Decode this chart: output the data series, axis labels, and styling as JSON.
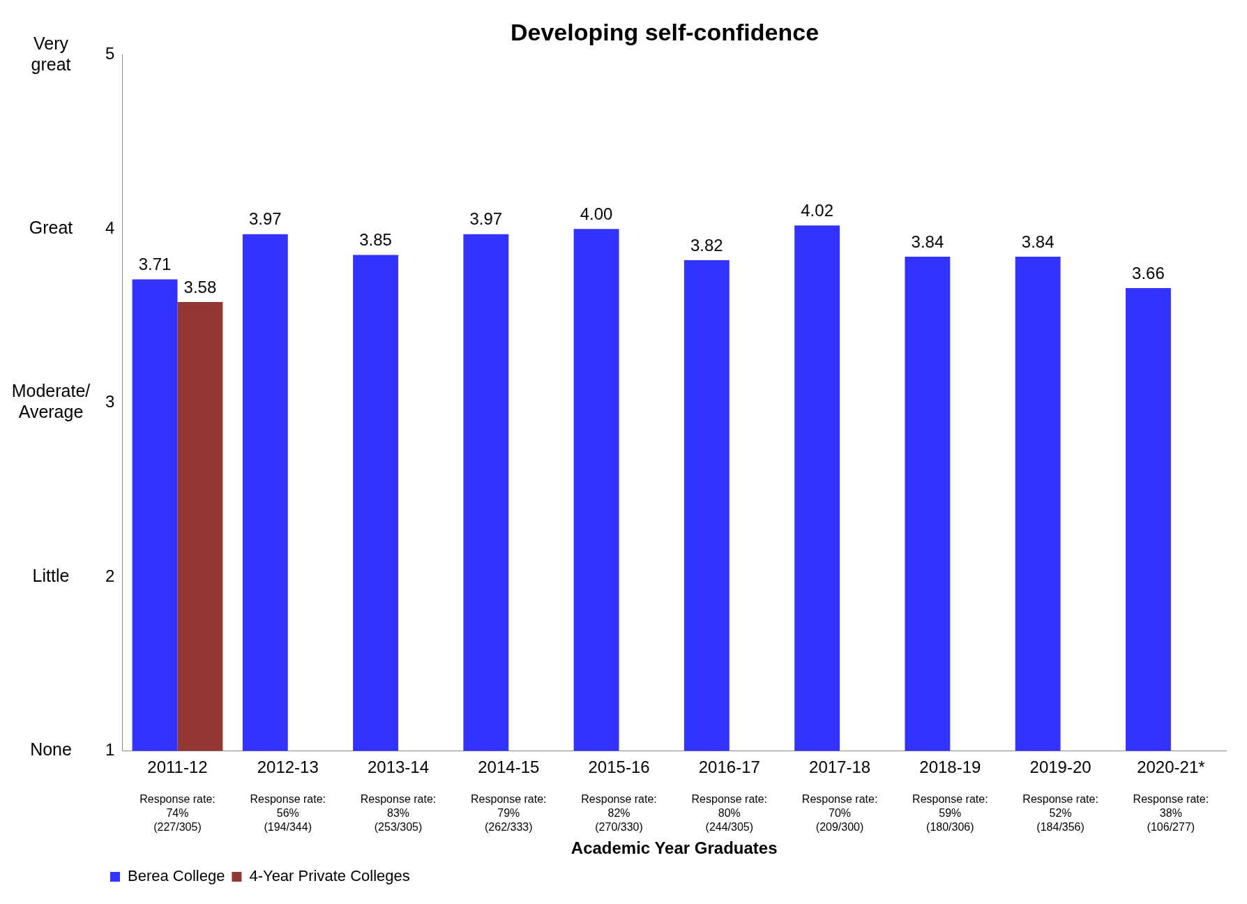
{
  "chart_data": {
    "type": "bar",
    "title": "Developing self-confidence",
    "xlabel": "Academic Year Graduates",
    "categories": [
      "2011-12",
      "2012-13",
      "2013-14",
      "2014-15",
      "2015-16",
      "2016-17",
      "2017-18",
      "2018-19",
      "2019-20",
      "2020-21*"
    ],
    "series": [
      {
        "name": "Berea College",
        "color": "#3333ff",
        "values": [
          3.71,
          3.97,
          3.85,
          3.97,
          4.0,
          3.82,
          4.02,
          3.84,
          3.84,
          3.66
        ],
        "value_labels": [
          "3.71",
          "3.97",
          "3.85",
          "3.97",
          "4.00",
          "3.82",
          "4.02",
          "3.84",
          "3.84",
          "3.66"
        ]
      },
      {
        "name": "4-Year Private Colleges",
        "color": "#943634",
        "values": [
          3.58,
          null,
          null,
          null,
          null,
          null,
          null,
          null,
          null,
          null
        ],
        "value_labels": [
          "3.58",
          null,
          null,
          null,
          null,
          null,
          null,
          null,
          null,
          null
        ]
      }
    ],
    "ylim": [
      1,
      5
    ],
    "yticks": [
      1,
      2,
      3,
      4,
      5
    ],
    "grid": false,
    "legend": "bottom left",
    "annotations": [
      "None",
      "Little",
      "Moderate/ Average",
      "Great",
      "Very great",
      {
        "text": "Response rate: 74% (227/305)",
        "x": "2011-12"
      },
      {
        "text": "Response rate: 56% (194/344)",
        "x": "2012-13"
      },
      {
        "text": "Response rate: 83% (253/305)",
        "x": "2013-14"
      },
      {
        "text": "Response rate: 79% (262/333)",
        "x": "2014-15"
      },
      {
        "text": "Response rate: 82% (270/330)",
        "x": "2015-16"
      },
      {
        "text": "Response rate: 80% (244/305)",
        "x": "2016-17"
      },
      {
        "text": "Response rate: 70% (209/300)",
        "x": "2017-18"
      },
      {
        "text": "Response rate: 59% (180/306)",
        "x": "2018-19"
      },
      {
        "text": "Response rate: 52% (184/356)",
        "x": "2019-20"
      },
      {
        "text": "Response rate: 38% (106/277)",
        "x": "2020-21*"
      }
    ]
  }
}
